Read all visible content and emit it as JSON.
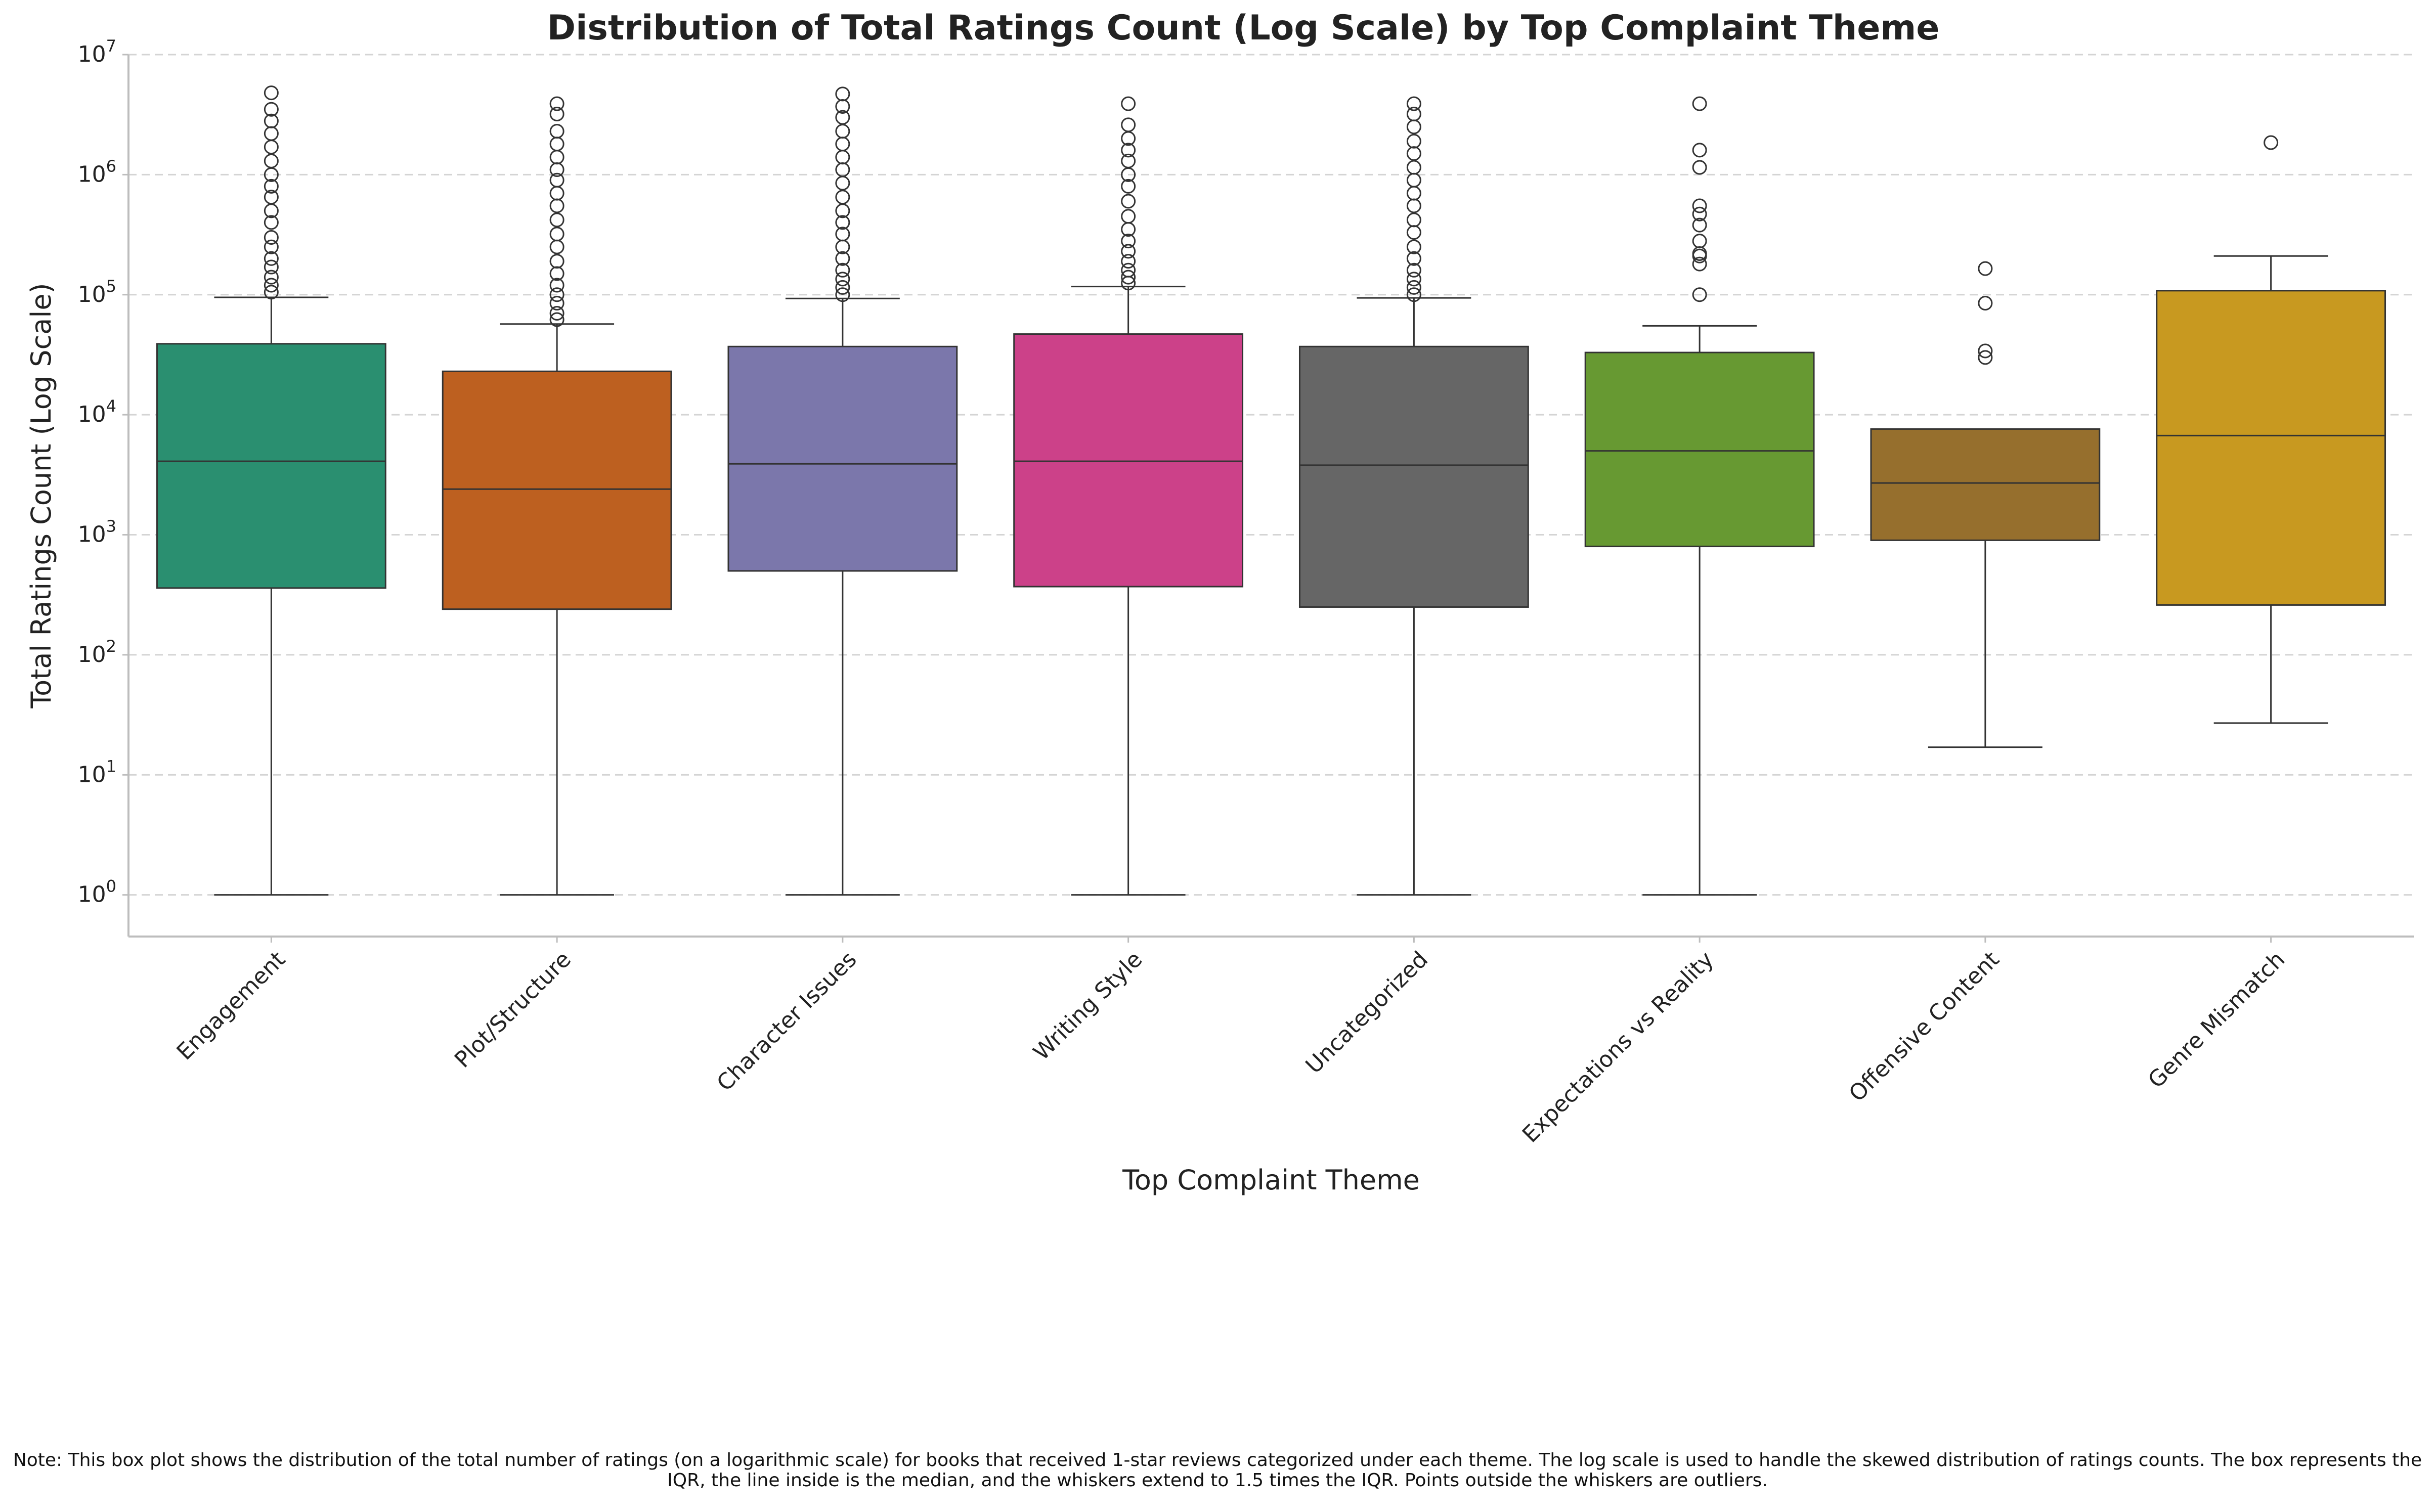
{
  "chart_data": {
    "type": "box",
    "title": "Distribution of Total Ratings Count (Log Scale) by Top Complaint Theme",
    "xlabel": "Top Complaint Theme",
    "ylabel": "Total Ratings Count (Log Scale)",
    "yscale": "log",
    "ylim": [
      0.45,
      10000000
    ],
    "yticks": [
      1,
      10,
      100,
      1000,
      10000,
      100000,
      1000000,
      10000000
    ],
    "grid": "horizontal dashed",
    "categories": [
      "Engagement",
      "Plot/Structure",
      "Character Issues",
      "Writing Style",
      "Uncategorized",
      "Expectations vs Reality",
      "Offensive Content",
      "Genre Mismatch"
    ],
    "colors": [
      "#2a8f70",
      "#bd6020",
      "#7b77ab",
      "#cc4189",
      "#666666",
      "#679932",
      "#966f2d",
      "#c89920"
    ],
    "series": [
      {
        "whisker_low": 1,
        "q1": 360,
        "median": 4100,
        "q3": 39000,
        "whisker_high": 95000,
        "outliers": [
          105000,
          120000,
          140000,
          170000,
          200000,
          250000,
          300000,
          400000,
          500000,
          650000,
          800000,
          1000000,
          1300000,
          1700000,
          2200000,
          2800000,
          3500000,
          4800000
        ]
      },
      {
        "whisker_low": 1,
        "q1": 240,
        "median": 2400,
        "q3": 23000,
        "whisker_high": 57000,
        "outliers": [
          62000,
          70000,
          85000,
          100000,
          120000,
          150000,
          190000,
          250000,
          320000,
          420000,
          550000,
          700000,
          900000,
          1100000,
          1400000,
          1800000,
          2300000,
          3200000,
          3900000
        ]
      },
      {
        "whisker_low": 1,
        "q1": 500,
        "median": 3900,
        "q3": 37000,
        "whisker_high": 93000,
        "outliers": [
          100000,
          115000,
          135000,
          160000,
          200000,
          250000,
          320000,
          400000,
          500000,
          650000,
          850000,
          1100000,
          1400000,
          1800000,
          2300000,
          3000000,
          3700000,
          4700000
        ]
      },
      {
        "whisker_low": 1,
        "q1": 370,
        "median": 4100,
        "q3": 47000,
        "whisker_high": 117000,
        "outliers": [
          125000,
          140000,
          160000,
          190000,
          230000,
          280000,
          350000,
          450000,
          600000,
          800000,
          1000000,
          1300000,
          1600000,
          2000000,
          2600000,
          3900000
        ]
      },
      {
        "whisker_low": 1,
        "q1": 250,
        "median": 3800,
        "q3": 37000,
        "whisker_high": 94000,
        "outliers": [
          100000,
          115000,
          135000,
          160000,
          200000,
          250000,
          330000,
          420000,
          550000,
          700000,
          900000,
          1150000,
          1500000,
          1900000,
          2500000,
          3200000,
          3900000
        ]
      },
      {
        "whisker_low": 1,
        "q1": 800,
        "median": 5000,
        "q3": 33000,
        "whisker_high": 55000,
        "outliers": [
          100000,
          180000,
          210000,
          220000,
          280000,
          380000,
          470000,
          550000,
          1150000,
          1600000,
          3900000
        ]
      },
      {
        "whisker_low": 17,
        "q1": 900,
        "median": 2700,
        "q3": 7600,
        "whisker_high": 7600,
        "outliers": [
          30000,
          34000,
          85000,
          165000
        ]
      },
      {
        "whisker_low": 27,
        "q1": 260,
        "median": 6700,
        "q3": 108000,
        "whisker_high": 210000,
        "outliers": [
          1850000
        ]
      }
    ]
  },
  "note": "Note: This box plot shows the distribution of the total number of ratings (on a logarithmic scale) for books that received 1-star reviews categorized under each theme. The log scale is used to handle the skewed distribution of ratings counts. The box represents the IQR, the line inside is the median, and the whiskers extend to 1.5 times the IQR. Points outside the whiskers are outliers."
}
